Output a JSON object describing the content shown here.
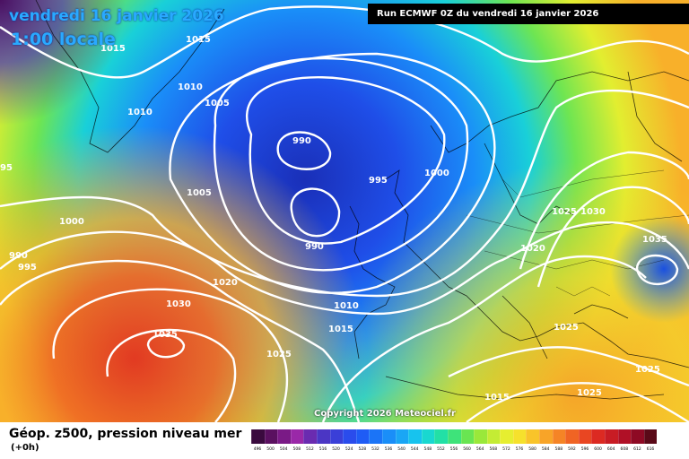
{
  "header": {
    "date": "vendredi 16 janvier 2026",
    "time": "1:00 locale",
    "run": "Run ECMWF 0Z du vendredi 16 janvier 2026"
  },
  "copyright": "Copyright 2026 Meteociel.fr",
  "legend": {
    "title": "Géop. z500, pression niveau mer",
    "offset": "(+0h)",
    "unit_ticks": [
      "496",
      "500",
      "504",
      "508",
      "512",
      "516",
      "520",
      "524",
      "528",
      "532",
      "536",
      "540",
      "544",
      "548",
      "552",
      "556",
      "560",
      "564",
      "568",
      "572",
      "576",
      "580",
      "584",
      "588",
      "592",
      "596",
      "600",
      "604",
      "608",
      "612",
      "616"
    ],
    "colors": [
      "#3a0a3e",
      "#5a1060",
      "#7a1a86",
      "#9a28a8",
      "#6a2bb0",
      "#4b36c4",
      "#3a3fd8",
      "#2a4cec",
      "#1f5cf5",
      "#1b74f7",
      "#1a8ef8",
      "#1aa6f5",
      "#17c3ee",
      "#19d8d0",
      "#22e0a6",
      "#3ee37a",
      "#69e552",
      "#9ae83a",
      "#c4ec34",
      "#e6ee30",
      "#f6e12c",
      "#f9c42a",
      "#f8a428",
      "#f58426",
      "#f06424",
      "#e94622",
      "#dc2a22",
      "#c81c24",
      "#b01026",
      "#8e0a24",
      "#5a0a18"
    ]
  },
  "isobars": [
    {
      "value": "1015",
      "label": "1015"
    },
    {
      "value": "1010",
      "label": "1010"
    },
    {
      "value": "1005",
      "label": "1005"
    },
    {
      "value": "1000",
      "label": "1000"
    },
    {
      "value": "995",
      "label": "995"
    },
    {
      "value": "990",
      "label": "990"
    },
    {
      "value": "1020",
      "label": "1020"
    },
    {
      "value": "1025",
      "label": "1025"
    },
    {
      "value": "1030",
      "label": "1030"
    },
    {
      "value": "1035",
      "label": "1035"
    }
  ],
  "labels": [
    "1015",
    "1015",
    "1010",
    "1005",
    "1010",
    "990",
    "995",
    "1000",
    "1005",
    "1000",
    "990",
    "995",
    "990",
    "1020",
    "1030",
    "1035",
    "1025",
    "1010",
    "1015",
    "1020",
    "1025",
    "1030",
    "1035",
    "1025",
    "1025",
    "1015",
    "1025",
    "95"
  ]
}
